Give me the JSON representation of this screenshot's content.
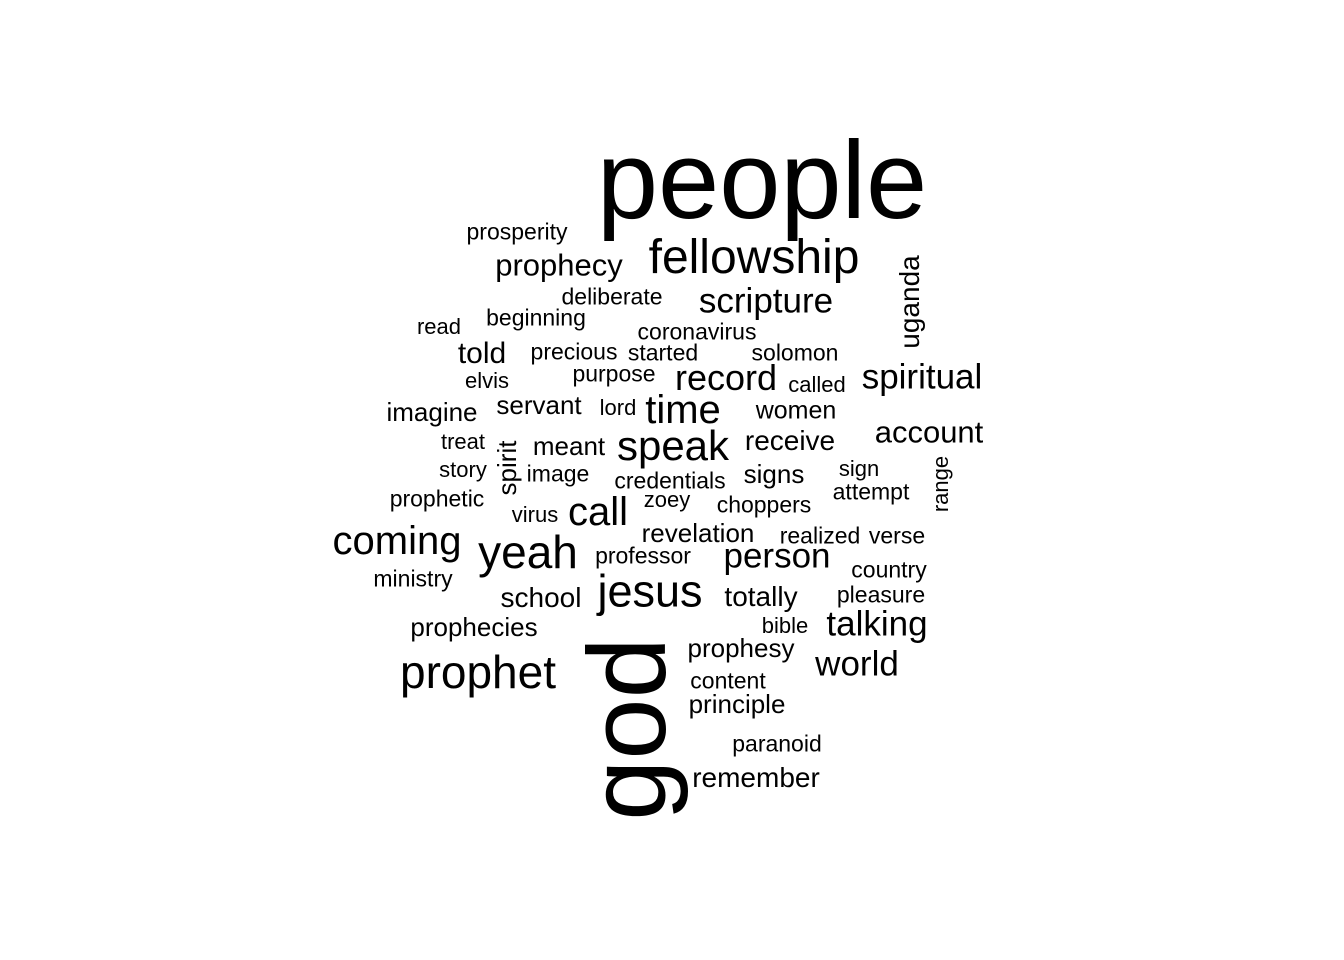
{
  "colors": {
    "text": "#000000",
    "background": "#ffffff"
  },
  "words": [
    {
      "text": "people",
      "size": 110,
      "vertical": false
    },
    {
      "text": "god",
      "size": 110,
      "vertical": true
    },
    {
      "text": "fellowship",
      "size": 48,
      "vertical": false
    },
    {
      "text": "prophet",
      "size": 46,
      "vertical": false
    },
    {
      "text": "jesus",
      "size": 45,
      "vertical": false
    },
    {
      "text": "yeah",
      "size": 46,
      "vertical": false
    },
    {
      "text": "speak",
      "size": 42,
      "vertical": false
    },
    {
      "text": "coming",
      "size": 40,
      "vertical": false
    },
    {
      "text": "time",
      "size": 40,
      "vertical": false
    },
    {
      "text": "call",
      "size": 40,
      "vertical": false
    },
    {
      "text": "record",
      "size": 36,
      "vertical": false
    },
    {
      "text": "scripture",
      "size": 35,
      "vertical": false
    },
    {
      "text": "spiritual",
      "size": 35,
      "vertical": false
    },
    {
      "text": "person",
      "size": 35,
      "vertical": false
    },
    {
      "text": "talking",
      "size": 35,
      "vertical": false
    },
    {
      "text": "world",
      "size": 35,
      "vertical": false
    },
    {
      "text": "prophecy",
      "size": 31,
      "vertical": false
    },
    {
      "text": "account",
      "size": 31,
      "vertical": false
    },
    {
      "text": "told",
      "size": 30,
      "vertical": false
    },
    {
      "text": "uganda",
      "size": 28,
      "vertical": true
    },
    {
      "text": "receive",
      "size": 28,
      "vertical": false
    },
    {
      "text": "totally",
      "size": 28,
      "vertical": false
    },
    {
      "text": "school",
      "size": 28,
      "vertical": false
    },
    {
      "text": "remember",
      "size": 28,
      "vertical": false
    },
    {
      "text": "spirit",
      "size": 26,
      "vertical": true
    },
    {
      "text": "meant",
      "size": 26,
      "vertical": false
    },
    {
      "text": "imagine",
      "size": 26,
      "vertical": false
    },
    {
      "text": "servant",
      "size": 26,
      "vertical": false
    },
    {
      "text": "revelation",
      "size": 26,
      "vertical": false
    },
    {
      "text": "prophecies",
      "size": 26,
      "vertical": false
    },
    {
      "text": "prophesy",
      "size": 26,
      "vertical": false
    },
    {
      "text": "principle",
      "size": 26,
      "vertical": false
    },
    {
      "text": "signs",
      "size": 26,
      "vertical": false
    },
    {
      "text": "women",
      "size": 25,
      "vertical": false
    },
    {
      "text": "beginning",
      "size": 23,
      "vertical": false
    },
    {
      "text": "deliberate",
      "size": 23,
      "vertical": false
    },
    {
      "text": "prosperity",
      "size": 23,
      "vertical": false
    },
    {
      "text": "coronavirus",
      "size": 23,
      "vertical": false
    },
    {
      "text": "precious",
      "size": 23,
      "vertical": false
    },
    {
      "text": "started",
      "size": 23,
      "vertical": false
    },
    {
      "text": "solomon",
      "size": 23,
      "vertical": false
    },
    {
      "text": "purpose",
      "size": 23,
      "vertical": false
    },
    {
      "text": "called",
      "size": 22,
      "vertical": false
    },
    {
      "text": "read",
      "size": 22,
      "vertical": false
    },
    {
      "text": "elvis",
      "size": 22,
      "vertical": false
    },
    {
      "text": "lord",
      "size": 22,
      "vertical": false
    },
    {
      "text": "treat",
      "size": 22,
      "vertical": false
    },
    {
      "text": "story",
      "size": 22,
      "vertical": false
    },
    {
      "text": "image",
      "size": 23,
      "vertical": false
    },
    {
      "text": "credentials",
      "size": 23,
      "vertical": false
    },
    {
      "text": "sign",
      "size": 22,
      "vertical": false
    },
    {
      "text": "attempt",
      "size": 23,
      "vertical": false
    },
    {
      "text": "range",
      "size": 22,
      "vertical": true
    },
    {
      "text": "prophetic",
      "size": 23,
      "vertical": false
    },
    {
      "text": "zoey",
      "size": 22,
      "vertical": false
    },
    {
      "text": "choppers",
      "size": 23,
      "vertical": false
    },
    {
      "text": "virus",
      "size": 22,
      "vertical": false
    },
    {
      "text": "realized",
      "size": 23,
      "vertical": false
    },
    {
      "text": "verse",
      "size": 23,
      "vertical": false
    },
    {
      "text": "professor",
      "size": 23,
      "vertical": false
    },
    {
      "text": "ministry",
      "size": 23,
      "vertical": false
    },
    {
      "text": "country",
      "size": 23,
      "vertical": false
    },
    {
      "text": "pleasure",
      "size": 23,
      "vertical": false
    },
    {
      "text": "bible",
      "size": 22,
      "vertical": false
    },
    {
      "text": "content",
      "size": 23,
      "vertical": false
    },
    {
      "text": "paranoid",
      "size": 23,
      "vertical": false
    }
  ]
}
